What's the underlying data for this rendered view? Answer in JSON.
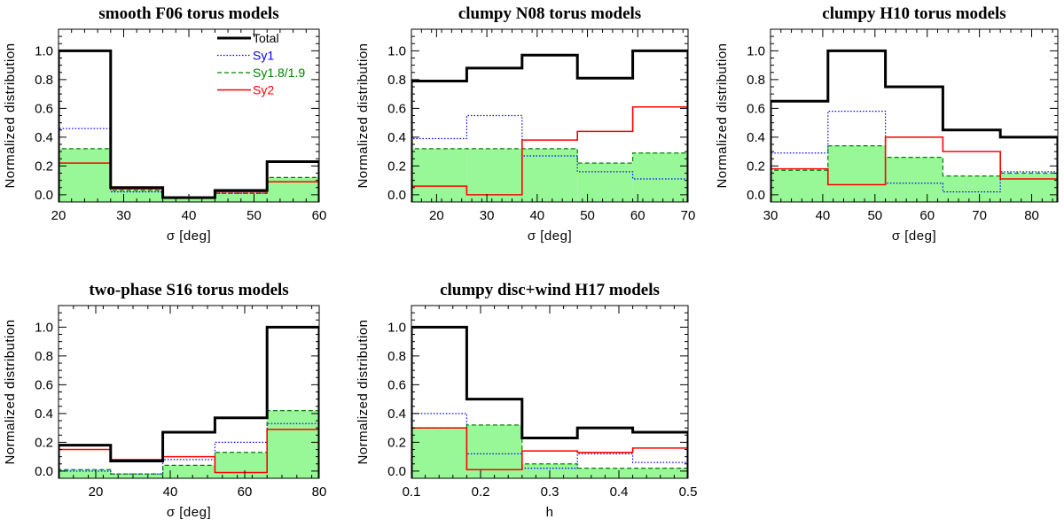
{
  "figure": {
    "colors": {
      "total": "#000000",
      "sy1": "#0000ff",
      "sy18": "#008000",
      "sy2": "#ff0000",
      "fill": "#98f898"
    },
    "legend": [
      {
        "key": "total",
        "label": "Total",
        "color": "#000000",
        "style": "solid"
      },
      {
        "key": "sy1",
        "label": "Sy1",
        "color": "#0000ff",
        "style": "dotted"
      },
      {
        "key": "sy18",
        "label": "Sy1.8/1.9",
        "color": "#008000",
        "style": "dashed"
      },
      {
        "key": "sy2",
        "label": "Sy2",
        "color": "#ff0000",
        "style": "solid"
      }
    ]
  },
  "chart_data": [
    {
      "type": "histogram",
      "title": "smooth F06 torus models",
      "xlabel": "σ [deg]",
      "ylabel": "Normalized distribution",
      "xlim": [
        20,
        60
      ],
      "ylim": [
        -0.05,
        1.15
      ],
      "xticks": [
        20,
        30,
        40,
        50,
        60
      ],
      "yticks": [
        0.0,
        0.2,
        0.4,
        0.6,
        0.8,
        1.0
      ],
      "ytick_labels": [
        "0.0",
        "0.2",
        "0.4",
        "0.6",
        "0.8",
        "1.0"
      ],
      "bin_edges": [
        20,
        28,
        36,
        44,
        52,
        60
      ],
      "series": [
        {
          "name": "Total",
          "values": [
            1.0,
            0.05,
            -0.02,
            0.03,
            0.23
          ]
        },
        {
          "name": "Sy1",
          "values": [
            0.46,
            0.02,
            -0.02,
            0.01,
            0.09
          ]
        },
        {
          "name": "Sy1.8/1.9",
          "values": [
            0.32,
            0.03,
            -0.02,
            0.01,
            0.12
          ]
        },
        {
          "name": "Sy2",
          "values": [
            0.22,
            0.04,
            -0.02,
            0.02,
            0.09
          ]
        }
      ]
    },
    {
      "type": "histogram",
      "title": "clumpy N08 torus models",
      "xlabel": "σ [deg]",
      "ylabel": "Normalized distribution",
      "xlim": [
        15,
        70
      ],
      "ylim": [
        -0.05,
        1.15
      ],
      "xticks": [
        20,
        30,
        40,
        50,
        60,
        70
      ],
      "yticks": [
        0.0,
        0.2,
        0.4,
        0.6,
        0.8,
        1.0
      ],
      "ytick_labels": [
        "0.0",
        "0.2",
        "0.4",
        "0.6",
        "0.8",
        "1.0"
      ],
      "bin_edges": [
        15,
        26,
        37,
        48,
        59,
        70
      ],
      "series": [
        {
          "name": "Total",
          "values": [
            0.79,
            0.88,
            0.97,
            0.81,
            1.0
          ]
        },
        {
          "name": "Sy1",
          "values": [
            0.39,
            0.55,
            0.27,
            0.16,
            0.11
          ]
        },
        {
          "name": "Sy1.8/1.9",
          "values": [
            0.32,
            0.32,
            0.32,
            0.22,
            0.29
          ]
        },
        {
          "name": "Sy2",
          "values": [
            0.06,
            0.0,
            0.38,
            0.44,
            0.61
          ]
        }
      ]
    },
    {
      "type": "histogram",
      "title": "clumpy H10 torus models",
      "xlabel": "σ [deg]",
      "ylabel": "Normalized distribution",
      "xlim": [
        30,
        85
      ],
      "ylim": [
        -0.05,
        1.15
      ],
      "xticks": [
        30,
        40,
        50,
        60,
        70,
        80
      ],
      "yticks": [
        0.0,
        0.2,
        0.4,
        0.6,
        0.8,
        1.0
      ],
      "ytick_labels": [
        "0.0",
        "0.2",
        "0.4",
        "0.6",
        "0.8",
        "1.0"
      ],
      "bin_edges": [
        30,
        41,
        52,
        63,
        74,
        85
      ],
      "series": [
        {
          "name": "Total",
          "values": [
            0.65,
            1.0,
            0.75,
            0.45,
            0.4
          ]
        },
        {
          "name": "Sy1",
          "values": [
            0.29,
            0.58,
            0.08,
            0.02,
            0.16
          ]
        },
        {
          "name": "Sy1.8/1.9",
          "values": [
            0.17,
            0.34,
            0.26,
            0.13,
            0.15
          ]
        },
        {
          "name": "Sy2",
          "values": [
            0.18,
            0.07,
            0.4,
            0.3,
            0.11
          ]
        }
      ]
    },
    {
      "type": "histogram",
      "title": "two-phase S16 torus models",
      "xlabel": "σ [deg]",
      "ylabel": "Normalized distribution",
      "xlim": [
        10,
        80
      ],
      "ylim": [
        -0.05,
        1.15
      ],
      "xticks": [
        20,
        40,
        60,
        80
      ],
      "yticks": [
        0.0,
        0.2,
        0.4,
        0.6,
        0.8,
        1.0
      ],
      "ytick_labels": [
        "0.0",
        "0.2",
        "0.4",
        "0.6",
        "0.8",
        "1.0"
      ],
      "bin_edges": [
        10,
        24,
        38,
        52,
        66,
        80
      ],
      "series": [
        {
          "name": "Total",
          "values": [
            0.18,
            0.07,
            0.27,
            0.37,
            1.0
          ]
        },
        {
          "name": "Sy1",
          "values": [
            0.0,
            -0.02,
            0.08,
            0.2,
            0.33
          ]
        },
        {
          "name": "Sy1.8/1.9",
          "values": [
            0.01,
            -0.02,
            0.04,
            0.13,
            0.42
          ]
        },
        {
          "name": "Sy2",
          "values": [
            0.15,
            0.08,
            0.1,
            -0.01,
            0.29
          ]
        }
      ]
    },
    {
      "type": "histogram",
      "title": "clumpy disc+wind H17 models",
      "xlabel": "h",
      "ylabel": "Normalized distribution",
      "xlim": [
        0.1,
        0.5
      ],
      "ylim": [
        -0.05,
        1.15
      ],
      "xticks": [
        0.1,
        0.2,
        0.3,
        0.4,
        0.5
      ],
      "xtick_labels": [
        "0.1",
        "0.2",
        "0.3",
        "0.4",
        "0.5"
      ],
      "yticks": [
        0.0,
        0.2,
        0.4,
        0.6,
        0.8,
        1.0
      ],
      "ytick_labels": [
        "0.0",
        "0.2",
        "0.4",
        "0.6",
        "0.8",
        "1.0"
      ],
      "bin_edges": [
        0.1,
        0.18,
        0.26,
        0.34,
        0.42,
        0.5
      ],
      "series": [
        {
          "name": "Total",
          "values": [
            1.0,
            0.5,
            0.23,
            0.3,
            0.27
          ]
        },
        {
          "name": "Sy1",
          "values": [
            0.4,
            0.12,
            0.02,
            0.12,
            0.06
          ]
        },
        {
          "name": "Sy1.8/1.9",
          "values": [
            0.3,
            0.32,
            0.05,
            0.02,
            0.02
          ]
        },
        {
          "name": "Sy2",
          "values": [
            0.3,
            0.01,
            0.14,
            0.13,
            0.16
          ]
        }
      ]
    }
  ]
}
